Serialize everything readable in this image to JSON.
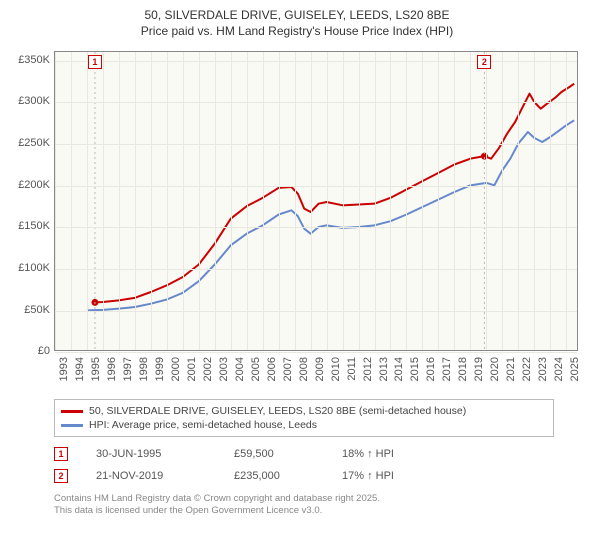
{
  "title_line1": "50, SILVERDALE DRIVE, GUISELEY, LEEDS, LS20 8BE",
  "title_line2": "Price paid vs. HM Land Registry's House Price Index (HPI)",
  "chart": {
    "type": "line",
    "background_color": "#fafaf5",
    "grid_color": "#e8e8e0",
    "border_color": "#888888",
    "x": {
      "min": 1993,
      "max": 2025.8,
      "ticks": [
        1993,
        1994,
        1995,
        1996,
        1997,
        1998,
        1999,
        2000,
        2001,
        2002,
        2003,
        2004,
        2005,
        2006,
        2007,
        2008,
        2009,
        2010,
        2011,
        2012,
        2013,
        2014,
        2015,
        2016,
        2017,
        2018,
        2019,
        2020,
        2021,
        2022,
        2023,
        2024,
        2025
      ],
      "tick_labels": [
        "1993",
        "1994",
        "1995",
        "1996",
        "1997",
        "1998",
        "1999",
        "2000",
        "2001",
        "2002",
        "2003",
        "2004",
        "2005",
        "2006",
        "2007",
        "2008",
        "2009",
        "2010",
        "2011",
        "2012",
        "2013",
        "2014",
        "2015",
        "2016",
        "2017",
        "2018",
        "2019",
        "2020",
        "2021",
        "2022",
        "2023",
        "2024",
        "2025"
      ],
      "label_fontsize": 11
    },
    "y": {
      "min": 0,
      "max": 360000,
      "ticks": [
        0,
        50000,
        100000,
        150000,
        200000,
        250000,
        300000,
        350000
      ],
      "tick_labels": [
        "£0",
        "£50K",
        "£100K",
        "£150K",
        "£200K",
        "£250K",
        "£300K",
        "£350K"
      ],
      "label_fontsize": 11
    },
    "series": [
      {
        "name": "50, SILVERDALE DRIVE, GUISELEY, LEEDS, LS20 8BE (semi-detached house)",
        "color": "#cc0000",
        "line_width": 2,
        "points": [
          [
            1995.5,
            59500
          ],
          [
            1996,
            60000
          ],
          [
            1997,
            62000
          ],
          [
            1998,
            65000
          ],
          [
            1999,
            72000
          ],
          [
            2000,
            80000
          ],
          [
            2001,
            90000
          ],
          [
            2002,
            105000
          ],
          [
            2003,
            130000
          ],
          [
            2004,
            160000
          ],
          [
            2005,
            175000
          ],
          [
            2006,
            185000
          ],
          [
            2007,
            197000
          ],
          [
            2007.8,
            198000
          ],
          [
            2008.2,
            190000
          ],
          [
            2008.6,
            172000
          ],
          [
            2009,
            168000
          ],
          [
            2009.5,
            178000
          ],
          [
            2010,
            180000
          ],
          [
            2011,
            176000
          ],
          [
            2012,
            177000
          ],
          [
            2013,
            178000
          ],
          [
            2014,
            185000
          ],
          [
            2015,
            195000
          ],
          [
            2016,
            205000
          ],
          [
            2017,
            215000
          ],
          [
            2018,
            225000
          ],
          [
            2019,
            232000
          ],
          [
            2019.88,
            235000
          ],
          [
            2020.3,
            232000
          ],
          [
            2020.8,
            245000
          ],
          [
            2021.3,
            262000
          ],
          [
            2021.8,
            276000
          ],
          [
            2022.3,
            295000
          ],
          [
            2022.7,
            310000
          ],
          [
            2023,
            300000
          ],
          [
            2023.4,
            292000
          ],
          [
            2023.8,
            298000
          ],
          [
            2024.3,
            305000
          ],
          [
            2024.7,
            312000
          ],
          [
            2025.2,
            318000
          ],
          [
            2025.5,
            322000
          ]
        ]
      },
      {
        "name": "HPI: Average price, semi-detached house, Leeds",
        "color": "#6688cc",
        "line_width": 2,
        "points": [
          [
            1995,
            50000
          ],
          [
            1996,
            50500
          ],
          [
            1997,
            52000
          ],
          [
            1998,
            54000
          ],
          [
            1999,
            58000
          ],
          [
            2000,
            63000
          ],
          [
            2001,
            71000
          ],
          [
            2002,
            85000
          ],
          [
            2003,
            105000
          ],
          [
            2004,
            128000
          ],
          [
            2005,
            142000
          ],
          [
            2006,
            152000
          ],
          [
            2007,
            165000
          ],
          [
            2007.8,
            170000
          ],
          [
            2008.2,
            163000
          ],
          [
            2008.6,
            148000
          ],
          [
            2009,
            142000
          ],
          [
            2009.5,
            150000
          ],
          [
            2010,
            152000
          ],
          [
            2011,
            149000
          ],
          [
            2012,
            150000
          ],
          [
            2013,
            152000
          ],
          [
            2014,
            157000
          ],
          [
            2015,
            165000
          ],
          [
            2016,
            174000
          ],
          [
            2017,
            183000
          ],
          [
            2018,
            192000
          ],
          [
            2019,
            200000
          ],
          [
            2020,
            203000
          ],
          [
            2020.5,
            200000
          ],
          [
            2021,
            218000
          ],
          [
            2021.5,
            232000
          ],
          [
            2022,
            250000
          ],
          [
            2022.6,
            264000
          ],
          [
            2023,
            257000
          ],
          [
            2023.5,
            252000
          ],
          [
            2024,
            258000
          ],
          [
            2024.5,
            265000
          ],
          [
            2025,
            272000
          ],
          [
            2025.5,
            278000
          ]
        ]
      }
    ],
    "markers": [
      {
        "id": "1",
        "x": 1995.5,
        "y_pos": "top",
        "color": "#cc0000"
      },
      {
        "id": "2",
        "x": 2019.88,
        "y_pos": "top",
        "color": "#cc0000"
      }
    ],
    "point_markers": [
      {
        "x": 1995.5,
        "y": 59500,
        "color": "#cc0000"
      },
      {
        "x": 2019.88,
        "y": 235000,
        "color": "#cc0000"
      }
    ]
  },
  "legend": {
    "items": [
      {
        "color": "#cc0000",
        "label": "50, SILVERDALE DRIVE, GUISELEY, LEEDS, LS20 8BE (semi-detached house)"
      },
      {
        "color": "#6688cc",
        "label": "HPI: Average price, semi-detached house, Leeds"
      }
    ]
  },
  "events": [
    {
      "id": "1",
      "color": "#cc0000",
      "date": "30-JUN-1995",
      "price": "£59,500",
      "hpi": "18% ↑ HPI"
    },
    {
      "id": "2",
      "color": "#cc0000",
      "date": "21-NOV-2019",
      "price": "£235,000",
      "hpi": "17% ↑ HPI"
    }
  ],
  "attribution_line1": "Contains HM Land Registry data © Crown copyright and database right 2025.",
  "attribution_line2": "This data is licensed under the Open Government Licence v3.0."
}
